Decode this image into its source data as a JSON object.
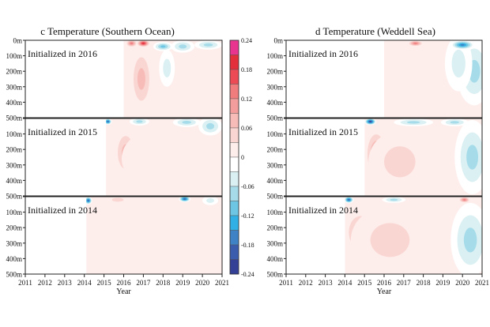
{
  "chart_data": [
    {
      "type": "heatmap",
      "title": "c  Temperature (Southern Ocean)",
      "xlabel": "Year",
      "ylabel": "",
      "xlim": [
        2011,
        2021
      ],
      "x_ticks": [
        "2011",
        "2012",
        "2013",
        "2014",
        "2015",
        "2016",
        "2017",
        "2018",
        "2019",
        "2020",
        "2021"
      ],
      "ylim": [
        0,
        500
      ],
      "depth_ticks": [
        "0m",
        "100m",
        "200m",
        "300m",
        "400m",
        "500m"
      ],
      "depth_tick_values": [
        0,
        100,
        200,
        300,
        400,
        500
      ],
      "panels": [
        {
          "label": "Initialized in 2016",
          "start_year": 2016.0,
          "blobs": [
            {
              "x": 2016.9,
              "depth": 250,
              "rx": 0.6,
              "ry": 210,
              "value": 0.09
            },
            {
              "x": 2017.0,
              "depth": 20,
              "rx": 0.35,
              "ry": 25,
              "value": 0.2
            },
            {
              "x": 2016.4,
              "depth": 20,
              "rx": 0.3,
              "ry": 25,
              "value": 0.14
            },
            {
              "x": 2018.0,
              "depth": 40,
              "rx": 0.5,
              "ry": 30,
              "value": -0.12
            },
            {
              "x": 2019.0,
              "depth": 40,
              "rx": 0.6,
              "ry": 40,
              "value": -0.09
            },
            {
              "x": 2020.3,
              "depth": 30,
              "rx": 0.7,
              "ry": 30,
              "value": -0.1
            },
            {
              "x": 2018.2,
              "depth": 180,
              "rx": 0.4,
              "ry": 120,
              "value": -0.05
            }
          ]
        },
        {
          "label": "Initialized in 2015",
          "start_year": 2015.1,
          "blobs": [
            {
              "x": 2016.1,
              "depth": 220,
              "rx": 0.6,
              "ry": 160,
              "value": 0.09
            },
            {
              "x": 2017.5,
              "depth": 260,
              "rx": 1.6,
              "ry": 180,
              "value": 0.04
            },
            {
              "x": 2015.2,
              "depth": 20,
              "rx": 0.2,
              "ry": 20,
              "value": -0.2
            },
            {
              "x": 2016.8,
              "depth": 20,
              "rx": 0.5,
              "ry": 25,
              "value": -0.1
            },
            {
              "x": 2019.2,
              "depth": 25,
              "rx": 0.7,
              "ry": 30,
              "value": -0.08
            },
            {
              "x": 2020.4,
              "depth": 50,
              "rx": 0.6,
              "ry": 60,
              "value": -0.1
            }
          ]
        },
        {
          "label": "Initialized in 2014",
          "start_year": 2014.1,
          "blobs": [
            {
              "x": 2016.1,
              "depth": 250,
              "rx": 0.5,
              "ry": 150,
              "value": 0.09
            },
            {
              "x": 2017.5,
              "depth": 300,
              "rx": 3.2,
              "ry": 220,
              "value": 0.035
            },
            {
              "x": 2014.2,
              "depth": 25,
              "rx": 0.2,
              "ry": 25,
              "value": -0.2
            },
            {
              "x": 2015.7,
              "depth": 20,
              "rx": 0.6,
              "ry": 25,
              "value": 0.05
            },
            {
              "x": 2019.1,
              "depth": 15,
              "rx": 0.3,
              "ry": 20,
              "value": -0.2
            },
            {
              "x": 2020.4,
              "depth": 25,
              "rx": 0.4,
              "ry": 30,
              "value": -0.06
            }
          ]
        }
      ]
    },
    {
      "type": "heatmap",
      "title": "d  Temperature (Weddell Sea)",
      "xlabel": "Year",
      "ylabel": "",
      "xlim": [
        2011,
        2021
      ],
      "x_ticks": [
        "2011",
        "2012",
        "2013",
        "2014",
        "2015",
        "2016",
        "2017",
        "2018",
        "2019",
        "2020",
        "2021"
      ],
      "ylim": [
        0,
        500
      ],
      "depth_ticks": [
        "0m",
        "100m",
        "200m",
        "300m",
        "400m",
        "500m"
      ],
      "depth_tick_values": [
        0,
        100,
        200,
        300,
        400,
        500
      ],
      "panels": [
        {
          "label": "Initialized in 2016",
          "start_year": 2016.0,
          "blobs": [
            {
              "x": 2017.5,
              "depth": 250,
              "rx": 1.6,
              "ry": 220,
              "value": 0.035
            },
            {
              "x": 2020.6,
              "depth": 200,
              "rx": 0.9,
              "ry": 220,
              "value": -0.09
            },
            {
              "x": 2019.8,
              "depth": 150,
              "rx": 0.7,
              "ry": 180,
              "value": -0.06
            },
            {
              "x": 2017.6,
              "depth": 20,
              "rx": 0.4,
              "ry": 20,
              "value": 0.14
            },
            {
              "x": 2020.0,
              "depth": 30,
              "rx": 0.6,
              "ry": 30,
              "value": -0.18
            }
          ]
        },
        {
          "label": "Initialized in 2015",
          "start_year": 2015.0,
          "blobs": [
            {
              "x": 2015.6,
              "depth": 230,
              "rx": 0.6,
              "ry": 170,
              "value": 0.13
            },
            {
              "x": 2016.8,
              "depth": 280,
              "rx": 1.6,
              "ry": 200,
              "value": 0.05
            },
            {
              "x": 2020.5,
              "depth": 250,
              "rx": 0.9,
              "ry": 240,
              "value": -0.08
            },
            {
              "x": 2015.3,
              "depth": 20,
              "rx": 0.3,
              "ry": 22,
              "value": -0.24
            },
            {
              "x": 2017.5,
              "depth": 25,
              "rx": 1.0,
              "ry": 25,
              "value": -0.1
            },
            {
              "x": 2019.6,
              "depth": 25,
              "rx": 0.7,
              "ry": 25,
              "value": -0.1
            }
          ]
        },
        {
          "label": "Initialized in 2014",
          "start_year": 2014.0,
          "blobs": [
            {
              "x": 2014.8,
              "depth": 230,
              "rx": 0.8,
              "ry": 140,
              "value": 0.12
            },
            {
              "x": 2016.3,
              "depth": 280,
              "rx": 2.0,
              "ry": 220,
              "value": 0.05
            },
            {
              "x": 2020.4,
              "depth": 280,
              "rx": 1.0,
              "ry": 240,
              "value": -0.08
            },
            {
              "x": 2014.2,
              "depth": 20,
              "rx": 0.25,
              "ry": 22,
              "value": -0.2
            },
            {
              "x": 2016.5,
              "depth": 20,
              "rx": 0.6,
              "ry": 20,
              "value": -0.1
            },
            {
              "x": 2020.1,
              "depth": 20,
              "rx": 0.3,
              "ry": 20,
              "value": 0.14
            }
          ]
        }
      ]
    }
  ],
  "colorbar": {
    "levels": [
      0.24,
      0.18,
      0.12,
      0.06,
      0,
      -0.06,
      -0.12,
      -0.18,
      -0.24
    ],
    "labels": [
      "0.24",
      "0.18",
      "0.12",
      "0.06",
      "0",
      "-0.06",
      "-0.12",
      "-0.18",
      "-0.24"
    ],
    "bins": [
      {
        "min": 0.21,
        "max": 0.24,
        "color": "#e8338f"
      },
      {
        "min": 0.18,
        "max": 0.21,
        "color": "#e22f3b"
      },
      {
        "min": 0.15,
        "max": 0.18,
        "color": "#ec4a55"
      },
      {
        "min": 0.12,
        "max": 0.15,
        "color": "#f07c7e"
      },
      {
        "min": 0.09,
        "max": 0.12,
        "color": "#f39e9c"
      },
      {
        "min": 0.06,
        "max": 0.09,
        "color": "#f7bcb8"
      },
      {
        "min": 0.03,
        "max": 0.06,
        "color": "#fad6d2"
      },
      {
        "min": 0.0,
        "max": 0.03,
        "color": "#fdeeec"
      },
      {
        "min": -0.03,
        "max": 0.0,
        "color": "#ffffff"
      },
      {
        "min": -0.06,
        "max": -0.03,
        "color": "#daf0f3"
      },
      {
        "min": -0.09,
        "max": -0.06,
        "color": "#a6dcea"
      },
      {
        "min": -0.12,
        "max": -0.09,
        "color": "#6cc6e4"
      },
      {
        "min": -0.15,
        "max": -0.12,
        "color": "#30b0e4"
      },
      {
        "min": -0.18,
        "max": -0.15,
        "color": "#3f83c6"
      },
      {
        "min": -0.21,
        "max": -0.18,
        "color": "#3b5bac"
      },
      {
        "min": -0.24,
        "max": -0.21,
        "color": "#343f96"
      }
    ]
  }
}
